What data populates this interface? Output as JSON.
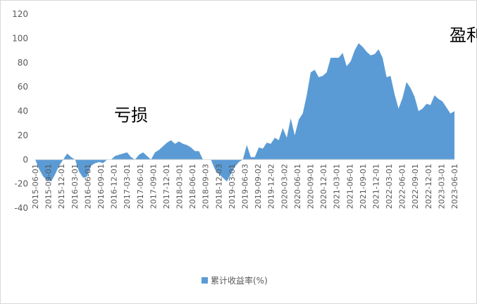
{
  "chart_data": {
    "type": "area",
    "title": "",
    "xlabel": "",
    "ylabel": "",
    "ylim": [
      -40,
      120
    ],
    "yticks": [
      -40,
      -20,
      0,
      20,
      40,
      60,
      80,
      100,
      120
    ],
    "grid": false,
    "legend_position": "bottom",
    "color": "#5b9bd5",
    "x_tick_labels": [
      "2015-06-01",
      "2015-09-01",
      "2015-12-01",
      "2016-03-01",
      "2016-06-01",
      "2016-09-01",
      "2016-12-01",
      "2017-03-01",
      "2017-06-01",
      "2017-09-01",
      "2017-12-01",
      "2018-03-01",
      "2018-06-01",
      "2018-09-03",
      "2018-12-03",
      "2019-03-01",
      "2019-06-03",
      "2019-09-02",
      "2019-12-02",
      "2020-03-02",
      "2020-06-01",
      "2020-09-01",
      "2020-12-01",
      "2021-03-01",
      "2021-06-01",
      "2021-09-01",
      "2021-12-01",
      "2022-03-01",
      "2022-06-01",
      "2022-09-01",
      "2022-12-01",
      "2023-03-01",
      "2023-06-01"
    ],
    "annotations": [
      {
        "text": "亏损",
        "x_index": 24,
        "y": 32
      },
      {
        "text": "盈利",
        "x_index": 108,
        "y": 98
      }
    ],
    "series": [
      {
        "name": "累计收益率(%)",
        "values": [
          0,
          -8,
          -14,
          -17,
          -18,
          -12,
          -5,
          0,
          5,
          2,
          0,
          -10,
          -15,
          -14,
          -5,
          -3,
          -2,
          -3,
          0,
          0,
          3,
          4,
          5,
          6,
          2,
          0,
          4,
          6,
          3,
          0,
          6,
          8,
          11,
          14,
          16,
          13,
          15,
          13,
          12,
          10,
          7,
          7,
          0,
          0,
          0,
          -8,
          -12,
          -15,
          -18,
          -12,
          -6,
          -2,
          0,
          12,
          2,
          2,
          10,
          9,
          14,
          13,
          18,
          16,
          26,
          18,
          34,
          20,
          33,
          38,
          53,
          72,
          74,
          68,
          69,
          72,
          84,
          84,
          84,
          88,
          77,
          81,
          90,
          96,
          93,
          89,
          86,
          87,
          91,
          84,
          68,
          69,
          54,
          42,
          51,
          64,
          59,
          52,
          40,
          42,
          46,
          45,
          53,
          50,
          48,
          43,
          38,
          40
        ]
      }
    ]
  }
}
